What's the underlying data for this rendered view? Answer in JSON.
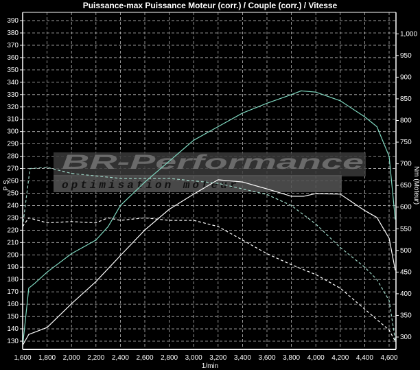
{
  "chart_data": {
    "type": "line",
    "title": "Puissance-max Puissance Moteur (corr.) / Couple (corr.) / Vitesse",
    "xlabel": "1/min",
    "ylabel_left": "P S",
    "ylabel_right": "Nm (Moteur)",
    "xlim": [
      1600,
      4660
    ],
    "ylim_left": [
      126,
      396
    ],
    "ylim_right": [
      270,
      1030
    ],
    "grid": true,
    "x_ticks": [
      "1,600",
      "1,800",
      "2,000",
      "2,200",
      "2,400",
      "2,600",
      "2,800",
      "3,000",
      "3,200",
      "3,400",
      "3,600",
      "3,800",
      "4,000",
      "4,200",
      "4,400",
      "4,600"
    ],
    "y_left_ticks": [
      "390",
      "380",
      "370",
      "360",
      "350",
      "340",
      "330",
      "320",
      "310",
      "300",
      "290",
      "280",
      "270",
      "260",
      "250",
      "240",
      "230",
      "220",
      "210",
      "200",
      "190",
      "180",
      "170",
      "160",
      "150",
      "140",
      "130"
    ],
    "y_right_ticks": [
      "1,000",
      "950",
      "900",
      "850",
      "800",
      "750",
      "700",
      "650",
      "600",
      "550",
      "500",
      "450",
      "400",
      "350",
      "300"
    ],
    "series": [
      {
        "axis": "left",
        "color": "#7fd8c0",
        "style": "solid",
        "x": [
          1600,
          1650,
          1700,
          1800,
          2000,
          2200,
          2300,
          2400,
          2600,
          2800,
          3000,
          3200,
          3400,
          3600,
          3800,
          3880,
          4000,
          4200,
          4400,
          4500,
          4600,
          4650
        ],
        "y": [
          126,
          173,
          177,
          186,
          201,
          212,
          223,
          240,
          259,
          276,
          293,
          304,
          315,
          323,
          330,
          333,
          332,
          325,
          312,
          304,
          280,
          229
        ]
      },
      {
        "axis": "right",
        "color": "#ffffff",
        "style": "solid",
        "x": [
          1600,
          1650,
          1800,
          2000,
          2200,
          2400,
          2600,
          2800,
          3000,
          3200,
          3400,
          3600,
          3800,
          3900,
          4000,
          4200,
          4400,
          4500,
          4600,
          4650
        ],
        "y": [
          281,
          306,
          322,
          377,
          428,
          488,
          547,
          595,
          630,
          663,
          658,
          642,
          625,
          625,
          631,
          630,
          592,
          576,
          528,
          455
        ]
      },
      {
        "axis": "left",
        "color": "#ffffff",
        "style": "dashed",
        "x": [
          1600,
          1650,
          1800,
          2000,
          2200,
          2300,
          2400,
          2600,
          2800,
          3000,
          3200,
          3400,
          3600,
          3800,
          4000,
          4200,
          4400,
          4600,
          4650
        ],
        "y": [
          223,
          230,
          226,
          227,
          226,
          230,
          228,
          230,
          228,
          228,
          223,
          212,
          201,
          192,
          184,
          173,
          156,
          139,
          130
        ]
      },
      {
        "axis": "left",
        "color": "#9fd8c8",
        "style": "dashed",
        "x": [
          1600,
          1660,
          1800,
          2000,
          2400,
          2800,
          3200,
          3600,
          3800,
          4000,
          4200,
          4400,
          4500,
          4600,
          4650
        ],
        "y": [
          223,
          270,
          271,
          266,
          262,
          262,
          258,
          249,
          240,
          225,
          206,
          190,
          180,
          163,
          131
        ]
      }
    ]
  },
  "logo": {
    "brand": "BR-Performance",
    "tagline": "optimisation moteur"
  }
}
